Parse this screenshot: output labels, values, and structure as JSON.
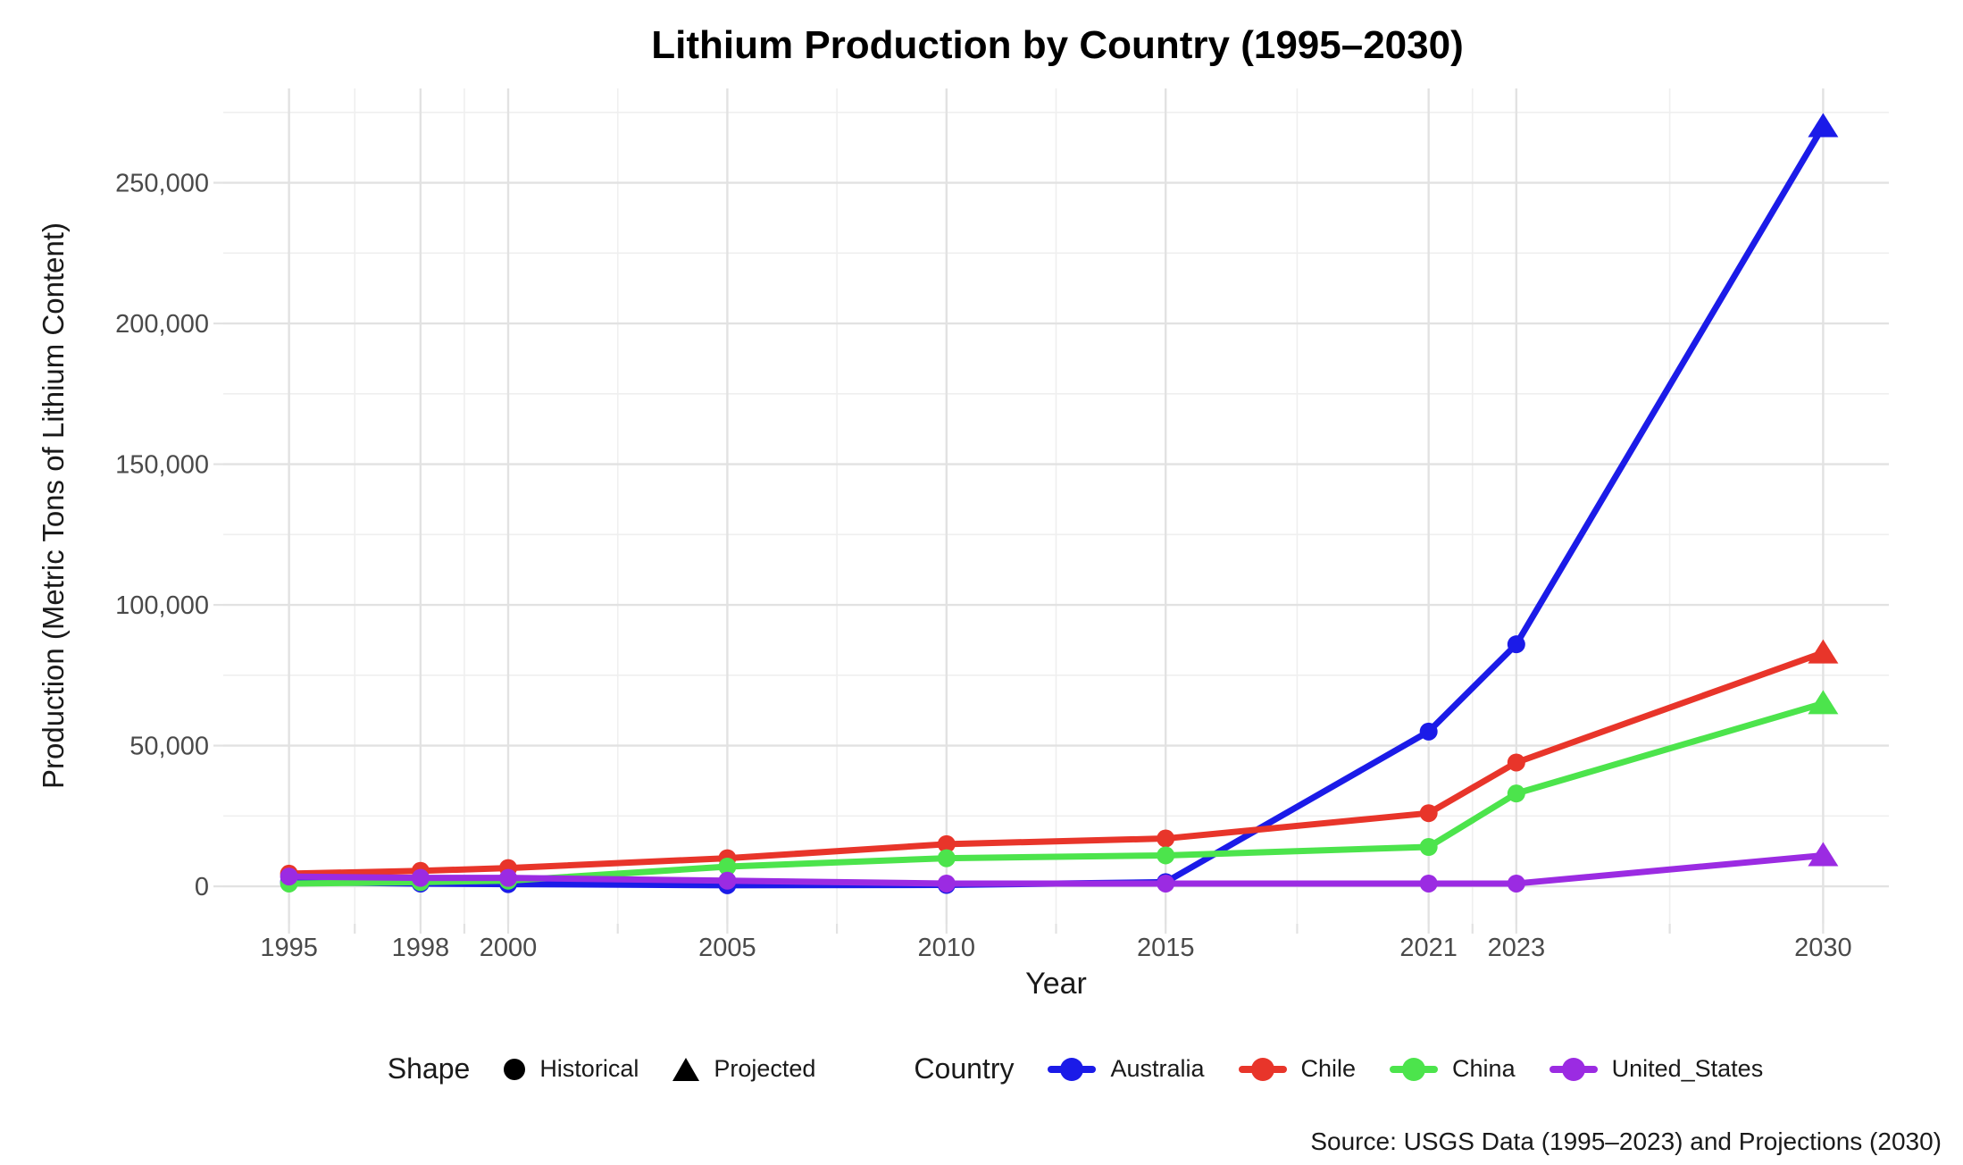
{
  "chart_data": {
    "type": "line",
    "title": "Lithium Production by Country (1995–2030)",
    "xlabel": "Year",
    "ylabel": "Production (Metric Tons of Lithium Content)",
    "caption": "Source: USGS Data (1995–2023) and Projections (2030)",
    "x": [
      1995,
      1998,
      2000,
      2005,
      2010,
      2015,
      2021,
      2023,
      2030
    ],
    "x_tick_labels": [
      "1995",
      "1998",
      "2000",
      "2005",
      "2010",
      "2015",
      "2021",
      "2023",
      "2030"
    ],
    "x_minor_ticks": [
      1996.5,
      1999,
      2002.5,
      2007.5,
      2012.5,
      2018,
      2022,
      2026.5
    ],
    "y_ticks": [
      0,
      50000,
      100000,
      150000,
      200000,
      250000
    ],
    "y_tick_labels": [
      "0",
      "50,000",
      "100,000",
      "150,000",
      "200,000",
      "250,000"
    ],
    "y_minor_ticks": [
      25000,
      75000,
      125000,
      175000,
      225000,
      275000
    ],
    "xlim": [
      1993.5,
      2031.5
    ],
    "ylim": [
      -13300,
      283500
    ],
    "grid": "major+minor",
    "legend_position": "bottom",
    "projected_x": 2030,
    "series": [
      {
        "name": "Australia",
        "color": "#1B1BE8",
        "values": [
          1500,
          1000,
          800,
          400,
          500,
          1500,
          55000,
          86000,
          270000
        ]
      },
      {
        "name": "Chile",
        "color": "#E8352A",
        "values": [
          4500,
          5500,
          6500,
          10000,
          15000,
          17000,
          26000,
          44000,
          83000
        ]
      },
      {
        "name": "China",
        "color": "#4CE44C",
        "values": [
          1000,
          1500,
          2000,
          7000,
          10000,
          11000,
          14000,
          33000,
          65000
        ]
      },
      {
        "name": "United_States",
        "color": "#9B2BE2",
        "values": [
          3500,
          3000,
          3000,
          2000,
          1000,
          1000,
          1000,
          1000,
          11000
        ]
      }
    ],
    "legend": {
      "shape": {
        "title": "Shape",
        "items": [
          {
            "label": "Historical",
            "marker": "circle"
          },
          {
            "label": "Projected",
            "marker": "triangle"
          }
        ]
      },
      "country": {
        "title": "Country",
        "items": [
          "Australia",
          "Chile",
          "China",
          "United_States"
        ]
      }
    }
  }
}
